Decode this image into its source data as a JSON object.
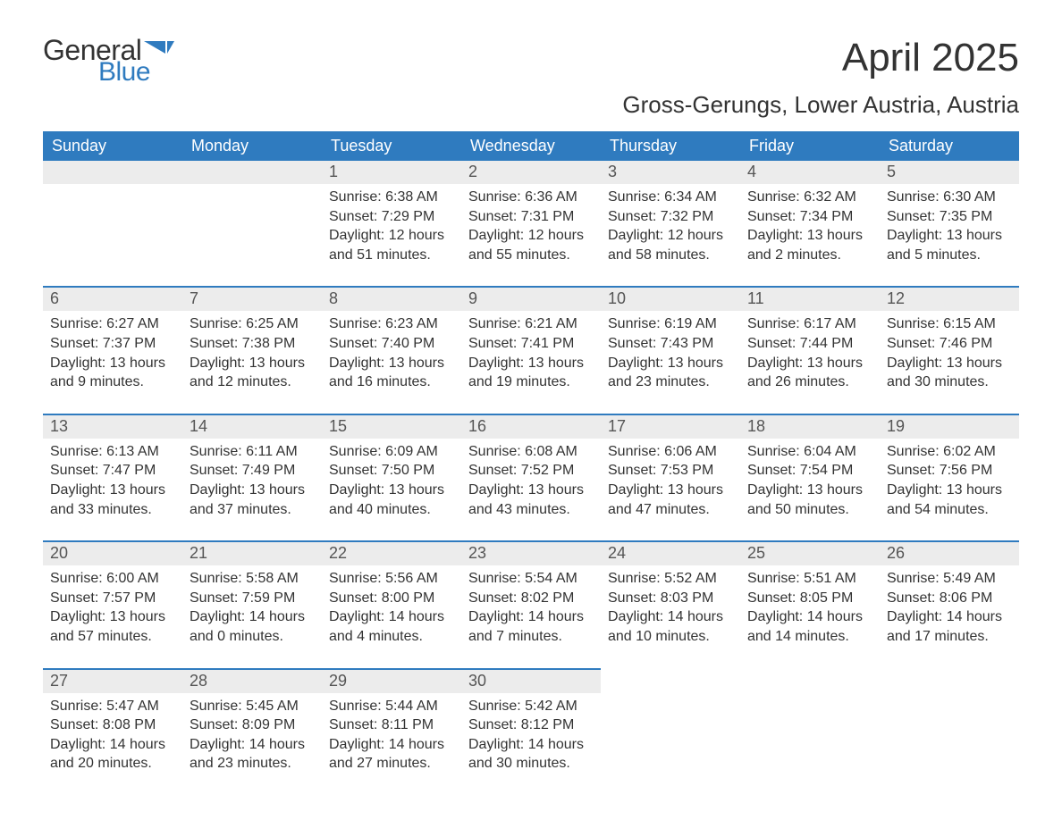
{
  "logo": {
    "general": "General",
    "blue": "Blue"
  },
  "title": "April 2025",
  "location": "Gross-Gerungs, Lower Austria, Austria",
  "colors": {
    "header_bg": "#2f7bbf",
    "header_text": "#ffffff",
    "daynum_bg": "#ececec",
    "text": "#333333",
    "row_border": "#2f7bbf",
    "logo_blue": "#2f7bbf"
  },
  "typography": {
    "title_fontsize": 44,
    "location_fontsize": 26,
    "header_fontsize": 18,
    "daynum_fontsize": 18,
    "body_fontsize": 16
  },
  "weekdays": [
    "Sunday",
    "Monday",
    "Tuesday",
    "Wednesday",
    "Thursday",
    "Friday",
    "Saturday"
  ],
  "weeks": [
    [
      {
        "day": "",
        "sunrise": "",
        "sunset": "",
        "daylight": ""
      },
      {
        "day": "",
        "sunrise": "",
        "sunset": "",
        "daylight": ""
      },
      {
        "day": "1",
        "sunrise": "Sunrise: 6:38 AM",
        "sunset": "Sunset: 7:29 PM",
        "daylight": "Daylight: 12 hours and 51 minutes."
      },
      {
        "day": "2",
        "sunrise": "Sunrise: 6:36 AM",
        "sunset": "Sunset: 7:31 PM",
        "daylight": "Daylight: 12 hours and 55 minutes."
      },
      {
        "day": "3",
        "sunrise": "Sunrise: 6:34 AM",
        "sunset": "Sunset: 7:32 PM",
        "daylight": "Daylight: 12 hours and 58 minutes."
      },
      {
        "day": "4",
        "sunrise": "Sunrise: 6:32 AM",
        "sunset": "Sunset: 7:34 PM",
        "daylight": "Daylight: 13 hours and 2 minutes."
      },
      {
        "day": "5",
        "sunrise": "Sunrise: 6:30 AM",
        "sunset": "Sunset: 7:35 PM",
        "daylight": "Daylight: 13 hours and 5 minutes."
      }
    ],
    [
      {
        "day": "6",
        "sunrise": "Sunrise: 6:27 AM",
        "sunset": "Sunset: 7:37 PM",
        "daylight": "Daylight: 13 hours and 9 minutes."
      },
      {
        "day": "7",
        "sunrise": "Sunrise: 6:25 AM",
        "sunset": "Sunset: 7:38 PM",
        "daylight": "Daylight: 13 hours and 12 minutes."
      },
      {
        "day": "8",
        "sunrise": "Sunrise: 6:23 AM",
        "sunset": "Sunset: 7:40 PM",
        "daylight": "Daylight: 13 hours and 16 minutes."
      },
      {
        "day": "9",
        "sunrise": "Sunrise: 6:21 AM",
        "sunset": "Sunset: 7:41 PM",
        "daylight": "Daylight: 13 hours and 19 minutes."
      },
      {
        "day": "10",
        "sunrise": "Sunrise: 6:19 AM",
        "sunset": "Sunset: 7:43 PM",
        "daylight": "Daylight: 13 hours and 23 minutes."
      },
      {
        "day": "11",
        "sunrise": "Sunrise: 6:17 AM",
        "sunset": "Sunset: 7:44 PM",
        "daylight": "Daylight: 13 hours and 26 minutes."
      },
      {
        "day": "12",
        "sunrise": "Sunrise: 6:15 AM",
        "sunset": "Sunset: 7:46 PM",
        "daylight": "Daylight: 13 hours and 30 minutes."
      }
    ],
    [
      {
        "day": "13",
        "sunrise": "Sunrise: 6:13 AM",
        "sunset": "Sunset: 7:47 PM",
        "daylight": "Daylight: 13 hours and 33 minutes."
      },
      {
        "day": "14",
        "sunrise": "Sunrise: 6:11 AM",
        "sunset": "Sunset: 7:49 PM",
        "daylight": "Daylight: 13 hours and 37 minutes."
      },
      {
        "day": "15",
        "sunrise": "Sunrise: 6:09 AM",
        "sunset": "Sunset: 7:50 PM",
        "daylight": "Daylight: 13 hours and 40 minutes."
      },
      {
        "day": "16",
        "sunrise": "Sunrise: 6:08 AM",
        "sunset": "Sunset: 7:52 PM",
        "daylight": "Daylight: 13 hours and 43 minutes."
      },
      {
        "day": "17",
        "sunrise": "Sunrise: 6:06 AM",
        "sunset": "Sunset: 7:53 PM",
        "daylight": "Daylight: 13 hours and 47 minutes."
      },
      {
        "day": "18",
        "sunrise": "Sunrise: 6:04 AM",
        "sunset": "Sunset: 7:54 PM",
        "daylight": "Daylight: 13 hours and 50 minutes."
      },
      {
        "day": "19",
        "sunrise": "Sunrise: 6:02 AM",
        "sunset": "Sunset: 7:56 PM",
        "daylight": "Daylight: 13 hours and 54 minutes."
      }
    ],
    [
      {
        "day": "20",
        "sunrise": "Sunrise: 6:00 AM",
        "sunset": "Sunset: 7:57 PM",
        "daylight": "Daylight: 13 hours and 57 minutes."
      },
      {
        "day": "21",
        "sunrise": "Sunrise: 5:58 AM",
        "sunset": "Sunset: 7:59 PM",
        "daylight": "Daylight: 14 hours and 0 minutes."
      },
      {
        "day": "22",
        "sunrise": "Sunrise: 5:56 AM",
        "sunset": "Sunset: 8:00 PM",
        "daylight": "Daylight: 14 hours and 4 minutes."
      },
      {
        "day": "23",
        "sunrise": "Sunrise: 5:54 AM",
        "sunset": "Sunset: 8:02 PM",
        "daylight": "Daylight: 14 hours and 7 minutes."
      },
      {
        "day": "24",
        "sunrise": "Sunrise: 5:52 AM",
        "sunset": "Sunset: 8:03 PM",
        "daylight": "Daylight: 14 hours and 10 minutes."
      },
      {
        "day": "25",
        "sunrise": "Sunrise: 5:51 AM",
        "sunset": "Sunset: 8:05 PM",
        "daylight": "Daylight: 14 hours and 14 minutes."
      },
      {
        "day": "26",
        "sunrise": "Sunrise: 5:49 AM",
        "sunset": "Sunset: 8:06 PM",
        "daylight": "Daylight: 14 hours and 17 minutes."
      }
    ],
    [
      {
        "day": "27",
        "sunrise": "Sunrise: 5:47 AM",
        "sunset": "Sunset: 8:08 PM",
        "daylight": "Daylight: 14 hours and 20 minutes."
      },
      {
        "day": "28",
        "sunrise": "Sunrise: 5:45 AM",
        "sunset": "Sunset: 8:09 PM",
        "daylight": "Daylight: 14 hours and 23 minutes."
      },
      {
        "day": "29",
        "sunrise": "Sunrise: 5:44 AM",
        "sunset": "Sunset: 8:11 PM",
        "daylight": "Daylight: 14 hours and 27 minutes."
      },
      {
        "day": "30",
        "sunrise": "Sunrise: 5:42 AM",
        "sunset": "Sunset: 8:12 PM",
        "daylight": "Daylight: 14 hours and 30 minutes."
      },
      {
        "day": "",
        "sunrise": "",
        "sunset": "",
        "daylight": ""
      },
      {
        "day": "",
        "sunrise": "",
        "sunset": "",
        "daylight": ""
      },
      {
        "day": "",
        "sunrise": "",
        "sunset": "",
        "daylight": ""
      }
    ]
  ]
}
